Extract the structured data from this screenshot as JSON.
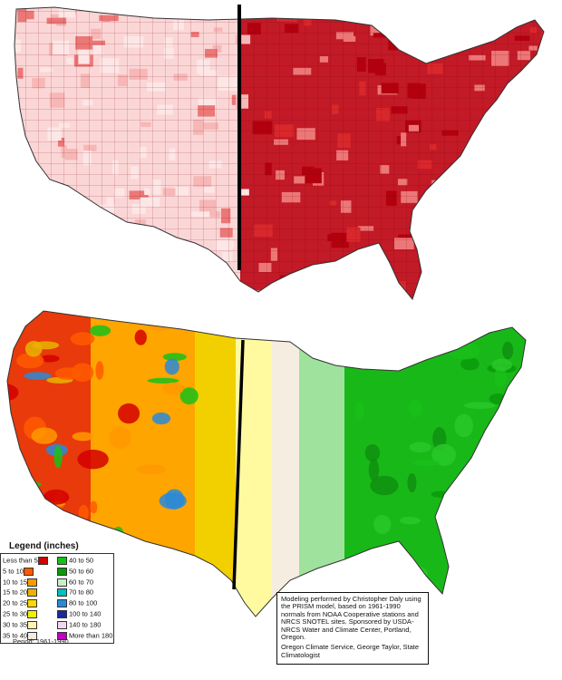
{
  "legend": {
    "title": "Legend (inches)",
    "items": [
      {
        "label": "Less than 5",
        "color": "#d40000"
      },
      {
        "label": "5 to 10",
        "color": "#ff5a00"
      },
      {
        "label": "10 to 15",
        "color": "#ff9900"
      },
      {
        "label": "15 to 20",
        "color": "#e8b400"
      },
      {
        "label": "20 to 25",
        "color": "#ffd700"
      },
      {
        "label": "25 to 30",
        "color": "#f0f000"
      },
      {
        "label": "30 to 35",
        "color": "#fff5b0"
      },
      {
        "label": "35 to 40",
        "color": "#f3ede0"
      },
      {
        "label": "40 to 50",
        "color": "#19c019"
      },
      {
        "label": "50 to 60",
        "color": "#0a9a0a"
      },
      {
        "label": "60 to 70",
        "color": "#c8f0c8"
      },
      {
        "label": "70 to 80",
        "color": "#00c0c0"
      },
      {
        "label": "80 to 100",
        "color": "#2a8ad8"
      },
      {
        "label": "100 to 140",
        "color": "#1a2aa0"
      },
      {
        "label": "140 to 180",
        "color": "#f0d8f0"
      },
      {
        "label": "More than 180",
        "color": "#c000c0"
      }
    ],
    "period": "Period: 1961-1990"
  },
  "credits": {
    "text1": "Modeling performed by Christopher Daly using the PRISM model, based on 1961-1990 normals from NOAA Cooperative stations and NRCS SNOTEL sites. Sponsored by USDA-NRCS Water and Climate Center, Portland, Oregon.",
    "text2": "Oregon Climate Service, George Taylor, State Climatologist"
  },
  "colors": {
    "top_map_shades": [
      "#fde6e6",
      "#f7b7b7",
      "#ec7777",
      "#d9282c",
      "#b3000f"
    ],
    "divider": "#000000",
    "state_border": "#333333"
  }
}
